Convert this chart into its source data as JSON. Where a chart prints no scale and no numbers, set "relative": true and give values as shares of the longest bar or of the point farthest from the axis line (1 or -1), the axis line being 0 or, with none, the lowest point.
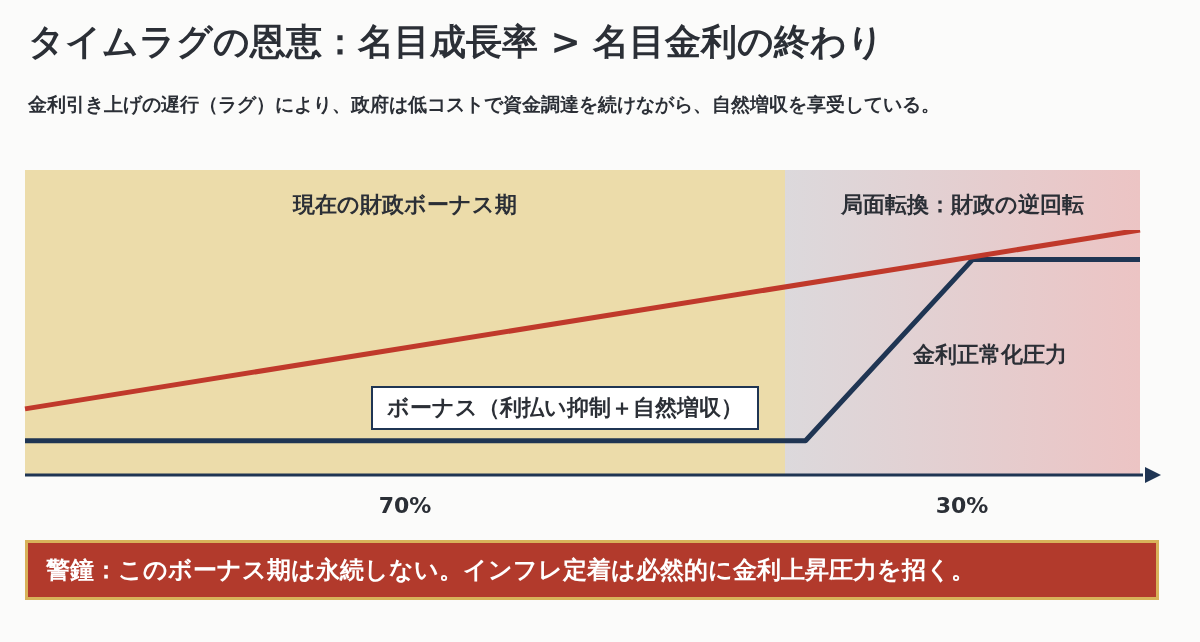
{
  "chart_data": {
    "type": "line",
    "title": "タイムラグの恩恵：名目成長率 > 名目金利の終わり",
    "subtitle": "金利引き上げの遅行（ラグ）により、政府は低コストで資金調達を続けながら、自然増収を享受している。",
    "relative": true,
    "categories": [
      null,
      null,
      null,
      null,
      null,
      null,
      null,
      null,
      null,
      null,
      null,
      null,
      null,
      null,
      null,
      null,
      null,
      null,
      null,
      null,
      null
    ],
    "series": [
      {
        "color": "#c0392b",
        "values": [
          0.27,
          null,
          null,
          null,
          null,
          null,
          null,
          null,
          null,
          null,
          null,
          null,
          null,
          null,
          null,
          null,
          null,
          null,
          null,
          null,
          1
        ]
      },
      {
        "color": "#1f3553",
        "values": [
          0.14,
          null,
          null,
          null,
          null,
          null,
          null,
          null,
          null,
          null,
          null,
          null,
          null,
          null,
          0.14,
          null,
          null,
          0.88,
          null,
          null,
          0.88
        ]
      }
    ],
    "annotations": [
      "現在の財政ボーナス期",
      "局面転換：財政の逆回転",
      "ボーナス（利払い抑制＋自然増収）",
      "金利正常化圧力",
      "70%",
      "30%",
      "警鐘：このボーナス期は永続しない。インフレ定着は必然的に金利上昇圧力を招く。"
    ],
    "legend": false,
    "marker": "none",
    "line_style": "solid"
  }
}
